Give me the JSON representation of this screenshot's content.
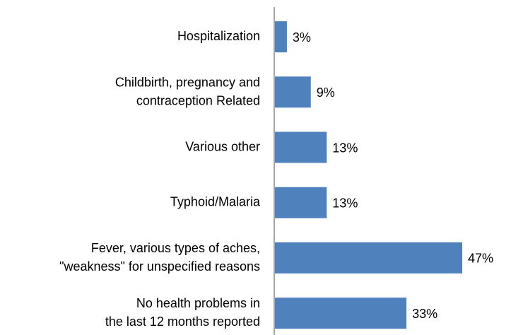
{
  "chart_data": {
    "type": "bar",
    "orientation": "horizontal",
    "categories": [
      "Hospitalization",
      "Childbirth, pregnancy and\ncontraception Related",
      "Various other",
      "Typhoid/Malaria",
      "Fever, various types of aches,\n\"weakness\" for unspecified reasons",
      "No health problems in\nthe last 12 months reported"
    ],
    "values": [
      3,
      9,
      13,
      13,
      47,
      33
    ],
    "value_labels": [
      "3%",
      "9%",
      "13%",
      "13%",
      "47%",
      "33%"
    ],
    "color": "#4f81bd"
  }
}
